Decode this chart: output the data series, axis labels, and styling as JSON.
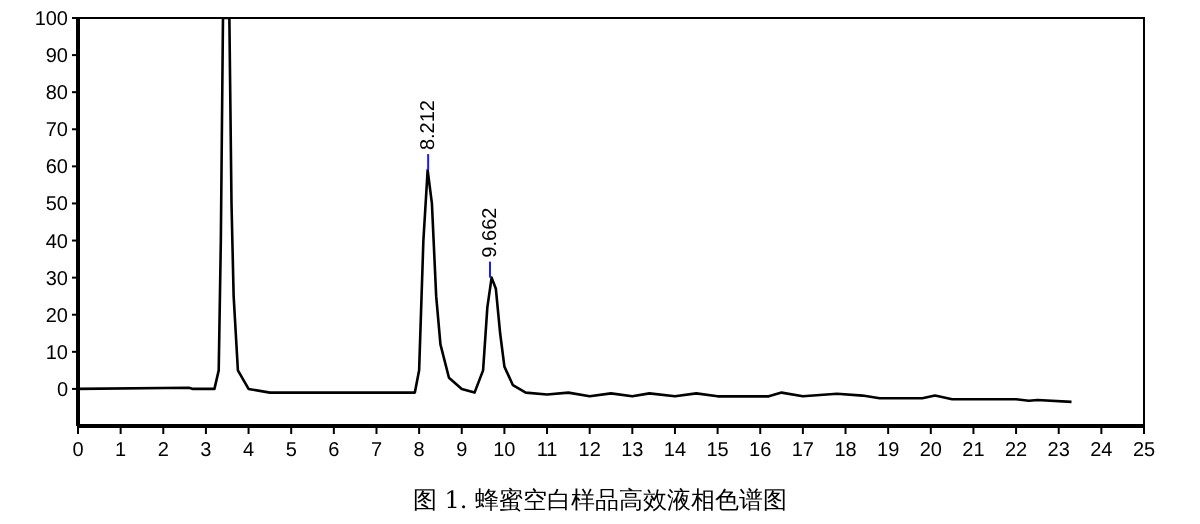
{
  "chart_data": {
    "type": "line",
    "title": "图 1. 蜂蜜空白样品高效液相色谱图",
    "x": [
      0,
      2.6,
      2.7,
      3.2,
      3.3,
      3.35,
      3.4,
      3.55,
      3.6,
      3.65,
      3.75,
      4.0,
      4.5,
      7.9,
      8.0,
      8.1,
      8.2,
      8.3,
      8.4,
      8.5,
      8.7,
      9.0,
      9.3,
      9.5,
      9.6,
      9.7,
      9.8,
      9.9,
      10.0,
      10.2,
      10.5,
      11.0,
      11.5,
      12,
      12.5,
      13,
      13.4,
      14,
      14.5,
      15,
      16.2,
      16.5,
      17,
      17.8,
      18.4,
      18.8,
      19.8,
      20.1,
      20.5,
      22,
      22.3,
      22.5,
      23.3
    ],
    "series": [
      {
        "color": "#000000",
        "values": [
          0,
          0.3,
          0,
          0,
          5,
          40,
          100,
          100,
          50,
          25,
          5,
          0,
          -1,
          -1,
          5,
          40,
          59,
          50,
          25,
          12,
          3,
          0,
          -1,
          5,
          22,
          30,
          27,
          15,
          6,
          1,
          -1,
          -1.5,
          -1,
          -2,
          -1.2,
          -2,
          -1.2,
          -2,
          -1.2,
          -2,
          -2,
          -1,
          -2,
          -1.3,
          -1.8,
          -2.5,
          -2.5,
          -1.8,
          -2.8,
          -2.8,
          -3.2,
          -3,
          -3.5
        ]
      }
    ],
    "annotations": [
      {
        "text": "8.212",
        "x": 8.212,
        "y": 59
      },
      {
        "text": "9.662",
        "x": 9.662,
        "y": 30
      }
    ],
    "xlim": [
      0,
      25
    ],
    "xticks": [
      0,
      1,
      2,
      3,
      4,
      5,
      6,
      7,
      8,
      9,
      10,
      11,
      12,
      13,
      14,
      15,
      16,
      17,
      18,
      19,
      20,
      21,
      22,
      23,
      24,
      25
    ],
    "ylim": [
      -10,
      100
    ],
    "yticks": [
      0,
      10,
      20,
      30,
      40,
      50,
      60,
      70,
      80,
      90,
      100
    ],
    "line_style": "solid"
  }
}
